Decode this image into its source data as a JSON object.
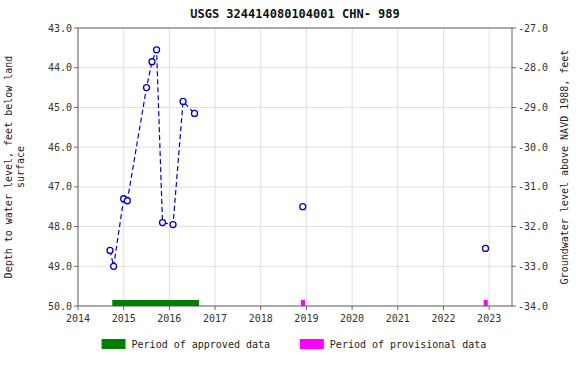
{
  "chart_data": {
    "type": "line",
    "title": "USGS 324414080104001 CHN- 989",
    "y_label": "Depth to water level, feet below land\nsurface",
    "y2_label": "Groundwater level above NAVD 1988, feet",
    "xlim": [
      2014,
      2023.5
    ],
    "xticks": [
      2014,
      2015,
      2016,
      2017,
      2018,
      2019,
      2020,
      2021,
      2022,
      2023
    ],
    "ylim": [
      50.0,
      43.0
    ],
    "yticks": [
      {
        "value": 43.0,
        "label": "43.0"
      },
      {
        "value": 44.0,
        "label": "44.0"
      },
      {
        "value": 45.0,
        "label": "45.0"
      },
      {
        "value": 46.0,
        "label": "46.0"
      },
      {
        "value": 47.0,
        "label": "47.0"
      },
      {
        "value": 48.0,
        "label": "48.0"
      },
      {
        "value": 49.0,
        "label": "49.0"
      },
      {
        "value": 50.0,
        "label": "50.0"
      }
    ],
    "y2lim": [
      -34.0,
      -27.0
    ],
    "y2ticks": [
      {
        "value": -27.0,
        "label": "-27.0"
      },
      {
        "value": -28.0,
        "label": "-28.0"
      },
      {
        "value": -29.0,
        "label": "-29.0"
      },
      {
        "value": -30.0,
        "label": "-30.0"
      },
      {
        "value": -31.0,
        "label": "-31.0"
      },
      {
        "value": -32.0,
        "label": "-32.0"
      },
      {
        "value": -33.0,
        "label": "-33.0"
      },
      {
        "value": -34.0,
        "label": "-34.0"
      }
    ],
    "grid": true,
    "legend": "bottom",
    "series": [
      {
        "x": [
          2014.7,
          2014.78,
          2015.0,
          2015.08,
          2015.5,
          2015.62,
          2015.72,
          2015.85,
          2016.08,
          2016.3,
          2016.55
        ],
        "values": [
          48.6,
          49.0,
          47.3,
          47.35,
          44.5,
          43.85,
          43.55,
          47.9,
          47.95,
          44.85,
          45.15
        ],
        "color": "#0000cc",
        "line_style": "dashed",
        "marker": "circle"
      },
      {
        "x": [
          2018.92,
          2022.92
        ],
        "values": [
          47.5,
          48.55
        ],
        "color": "#0000cc",
        "line_style": "none",
        "marker": "circle"
      }
    ],
    "periods": [
      {
        "name": "Period of approved data",
        "color": "#008000",
        "ranges": [
          [
            2014.75,
            2016.65
          ]
        ]
      },
      {
        "name": "Period of provisional data",
        "color": "#ff00ff",
        "ranges": [
          [
            2018.88,
            2018.97
          ],
          [
            2022.88,
            2022.97
          ]
        ]
      }
    ]
  }
}
